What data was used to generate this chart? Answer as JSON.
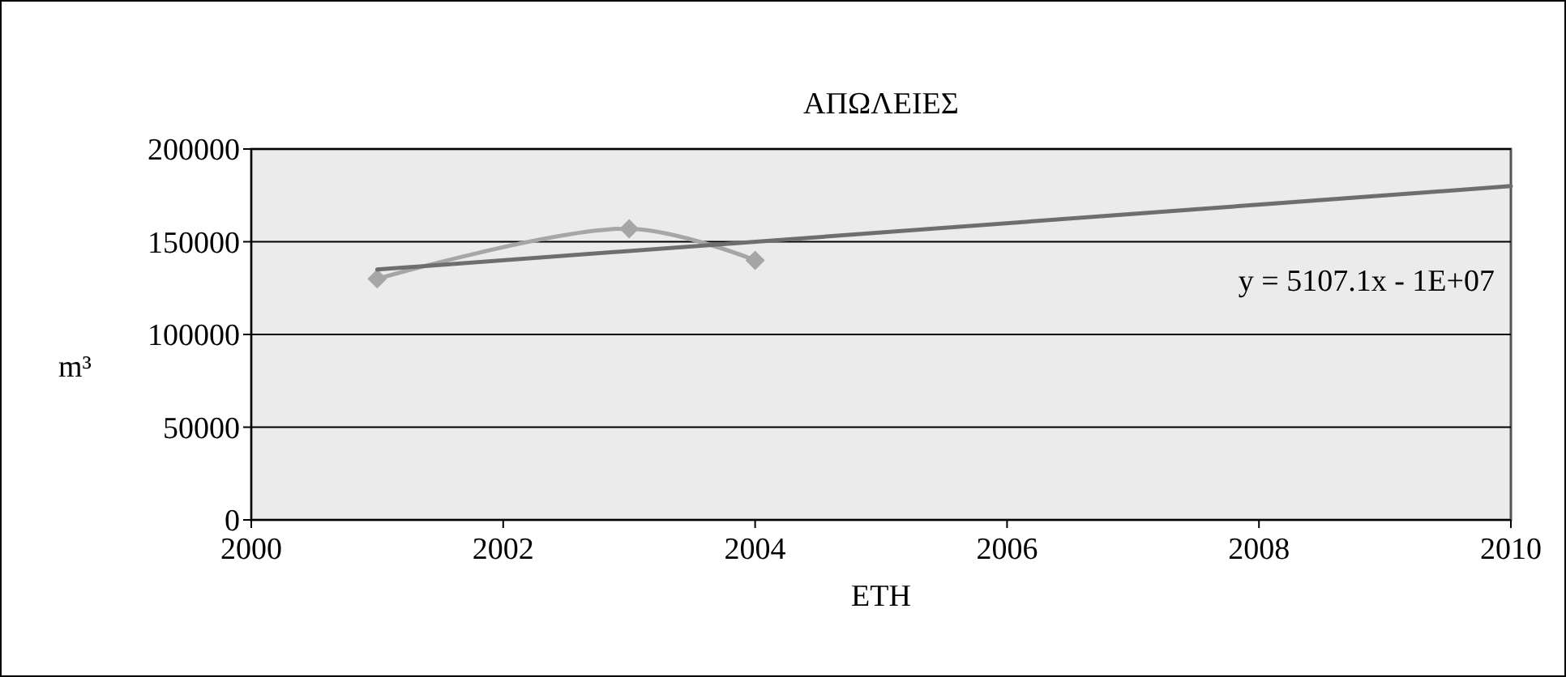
{
  "chart_data": {
    "type": "line",
    "title": "ΑΠΩΛΕΙΕΣ",
    "xlabel": "ΕΤΗ",
    "ylabel": "m³",
    "xlim": [
      2000,
      2010
    ],
    "xticks": [
      2000,
      2002,
      2004,
      2006,
      2008,
      2010
    ],
    "ylim": [
      0,
      200000
    ],
    "yticks": [
      0,
      50000,
      100000,
      150000,
      200000
    ],
    "grid": "y",
    "series": [
      {
        "x": [
          2001,
          2003,
          2004
        ],
        "values": [
          130000,
          157000,
          140000
        ],
        "color": "#a6a6a6",
        "marker": "diamond"
      },
      {
        "type": "line",
        "x": [
          2001,
          2010
        ],
        "values": [
          135000,
          180000
        ],
        "color": "#6e6e6e",
        "marker": "none"
      }
    ],
    "annotations": [
      "y = 5107.1x - 1E+07"
    ]
  }
}
